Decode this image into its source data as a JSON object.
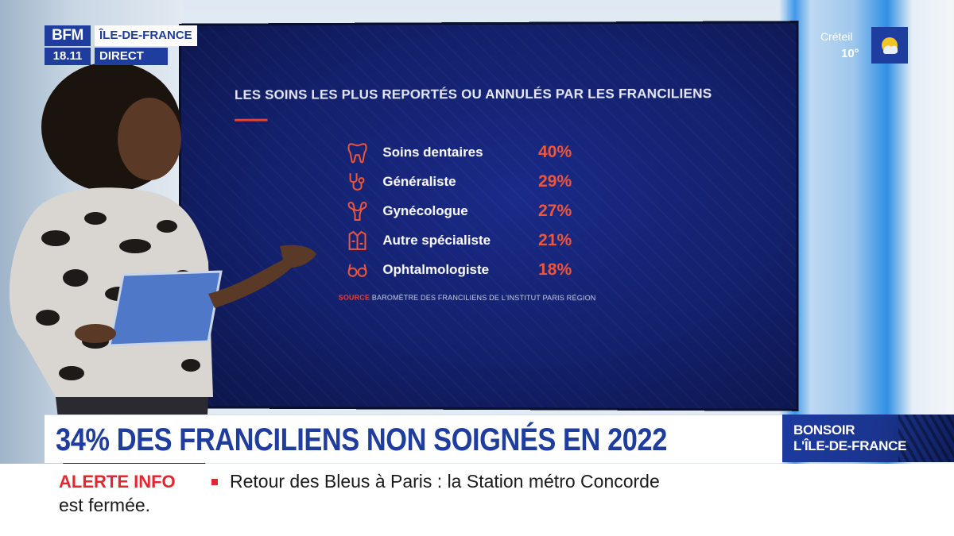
{
  "logo": {
    "channel": "BFM",
    "time": "18.11",
    "region": "ÎLE-DE-FRANCE",
    "live": "DIRECT"
  },
  "weather": {
    "city": "Créteil",
    "temperature": "10°",
    "icon": "sun-icon"
  },
  "screen": {
    "title": "LES SOINS LES PLUS REPORTÉS OU ANNULÉS PAR LES FRANCILIENS",
    "items": [
      {
        "label": "Soins dentaires",
        "value": "40%",
        "icon": "tooth-icon"
      },
      {
        "label": "Généraliste",
        "value": "29%",
        "icon": "stethoscope-icon"
      },
      {
        "label": "Gynécologue",
        "value": "27%",
        "icon": "uterus-icon"
      },
      {
        "label": "Autre spécialiste",
        "value": "21%",
        "icon": "doctor-coat-icon"
      },
      {
        "label": "Ophtalmologiste",
        "value": "18%",
        "icon": "glasses-icon"
      }
    ],
    "source_key": "SOURCE",
    "source_text": "BAROMÈTRE DES FRANCILIENS DE L'INSTITUT PARIS RÉGION",
    "accent_color": "#f0563a"
  },
  "headline": {
    "text": "34% DES FRANCILIENS NON SOIGNÉS EN 2022"
  },
  "show": {
    "line1": "BONSOIR",
    "line2": "L'ÎLE-DE-FRANCE"
  },
  "ticker": {
    "label": "ALERTE INFO",
    "line1": "Retour des Bleus à Paris : la Station métro Concorde",
    "line2": "est fermée."
  },
  "colors": {
    "brand_blue": "#1e3d9e",
    "alert_red": "#e3262f"
  }
}
